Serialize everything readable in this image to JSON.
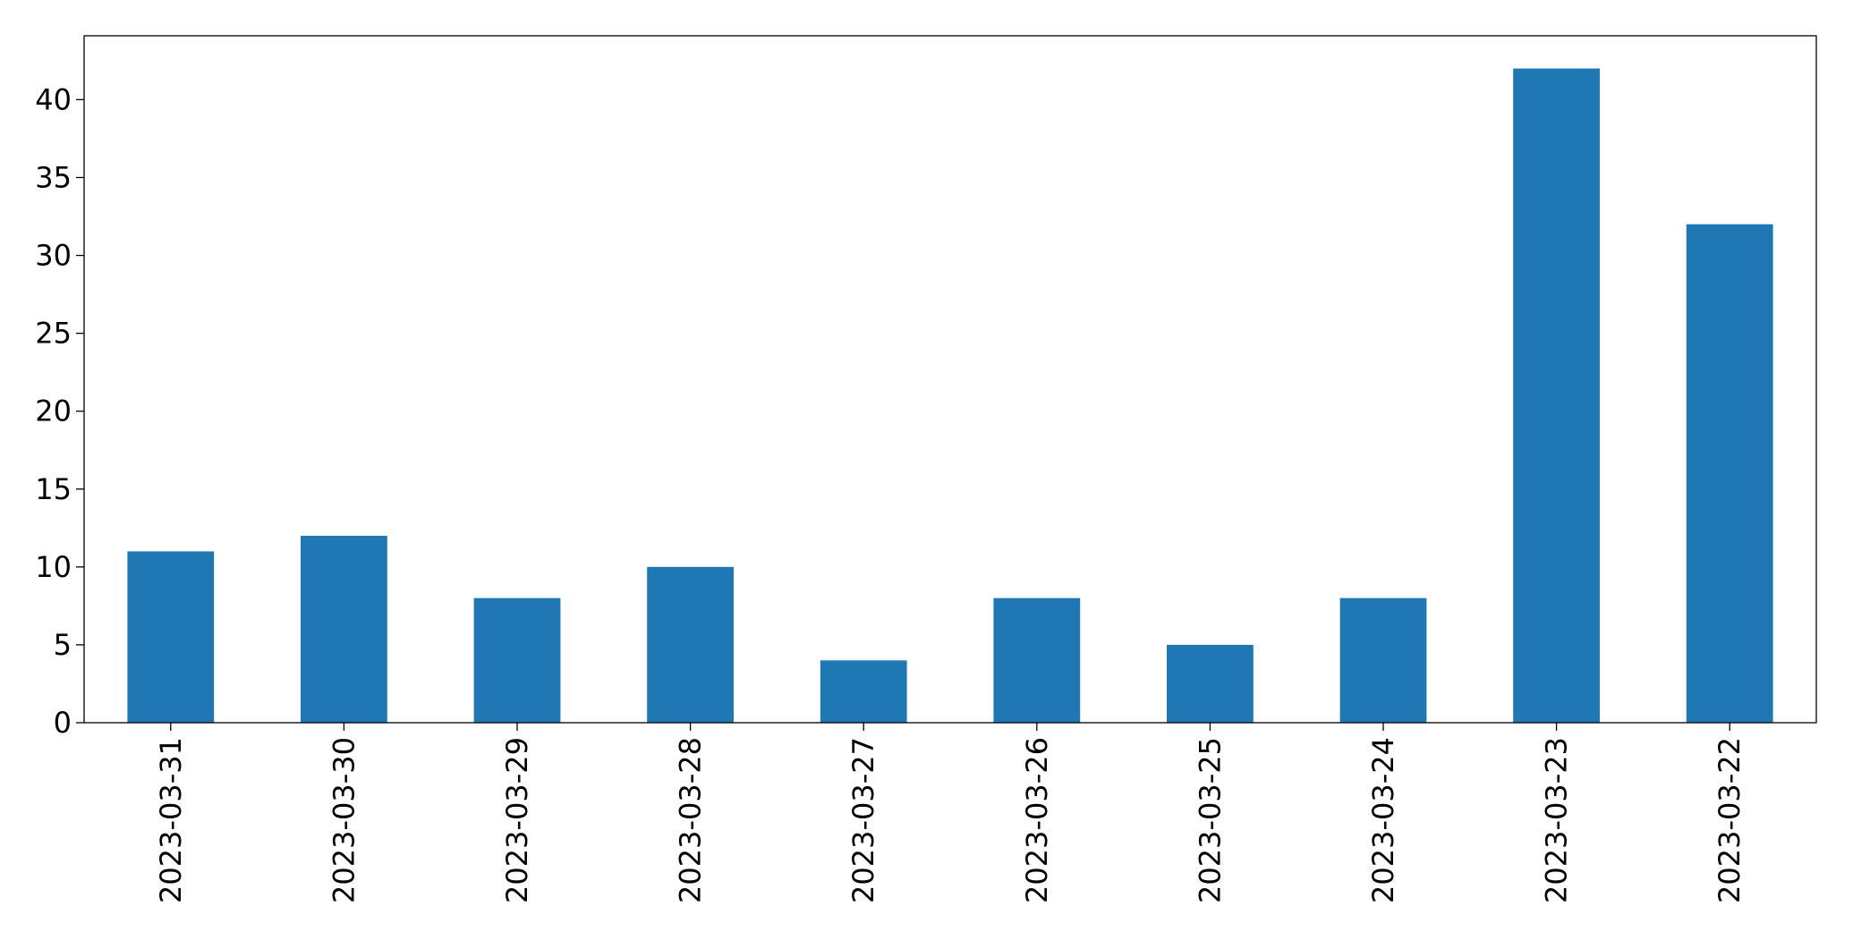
{
  "chart_data": {
    "type": "bar",
    "categories": [
      "2023-03-31",
      "2023-03-30",
      "2023-03-29",
      "2023-03-28",
      "2023-03-27",
      "2023-03-26",
      "2023-03-25",
      "2023-03-24",
      "2023-03-23",
      "2023-03-22"
    ],
    "values": [
      11,
      12,
      8,
      10,
      4,
      8,
      5,
      8,
      42,
      32
    ],
    "color": "#1f77b4",
    "ylim": [
      0,
      44.1
    ],
    "yticks": [
      0,
      5,
      10,
      15,
      20,
      25,
      30,
      35,
      40
    ],
    "grid": false
  }
}
